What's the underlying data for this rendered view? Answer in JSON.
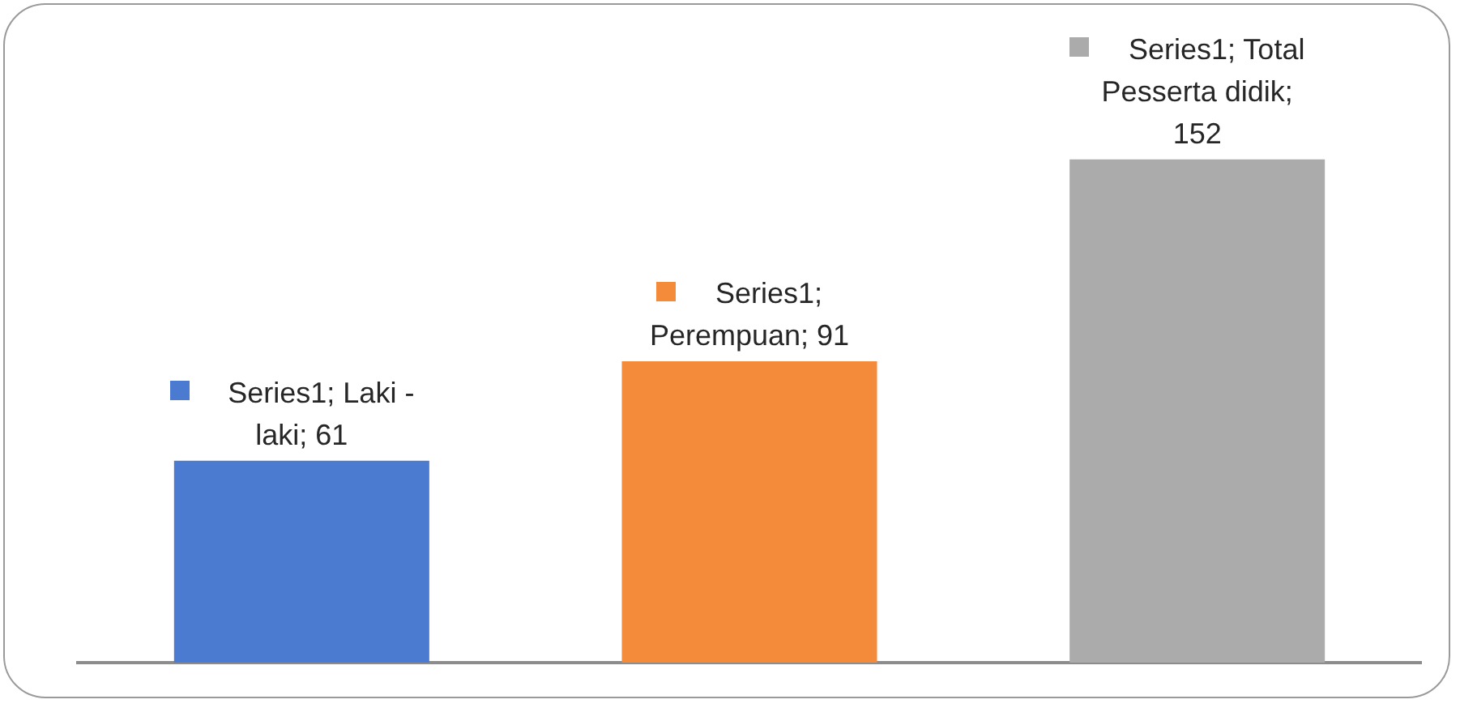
{
  "chart_data": {
    "type": "bar",
    "categories": [
      null,
      null,
      null
    ],
    "values": [
      61,
      91,
      152
    ],
    "colors": [
      "#4a7bd0",
      "#f48b3a",
      "#ababab"
    ],
    "value_labels": [
      "Series1; Laki - laki; 61",
      "Series1; Perempuan; 91",
      "Series1; Total Pesserta didik; 152"
    ],
    "grid": false,
    "legend": false,
    "tick_labels": false
  }
}
